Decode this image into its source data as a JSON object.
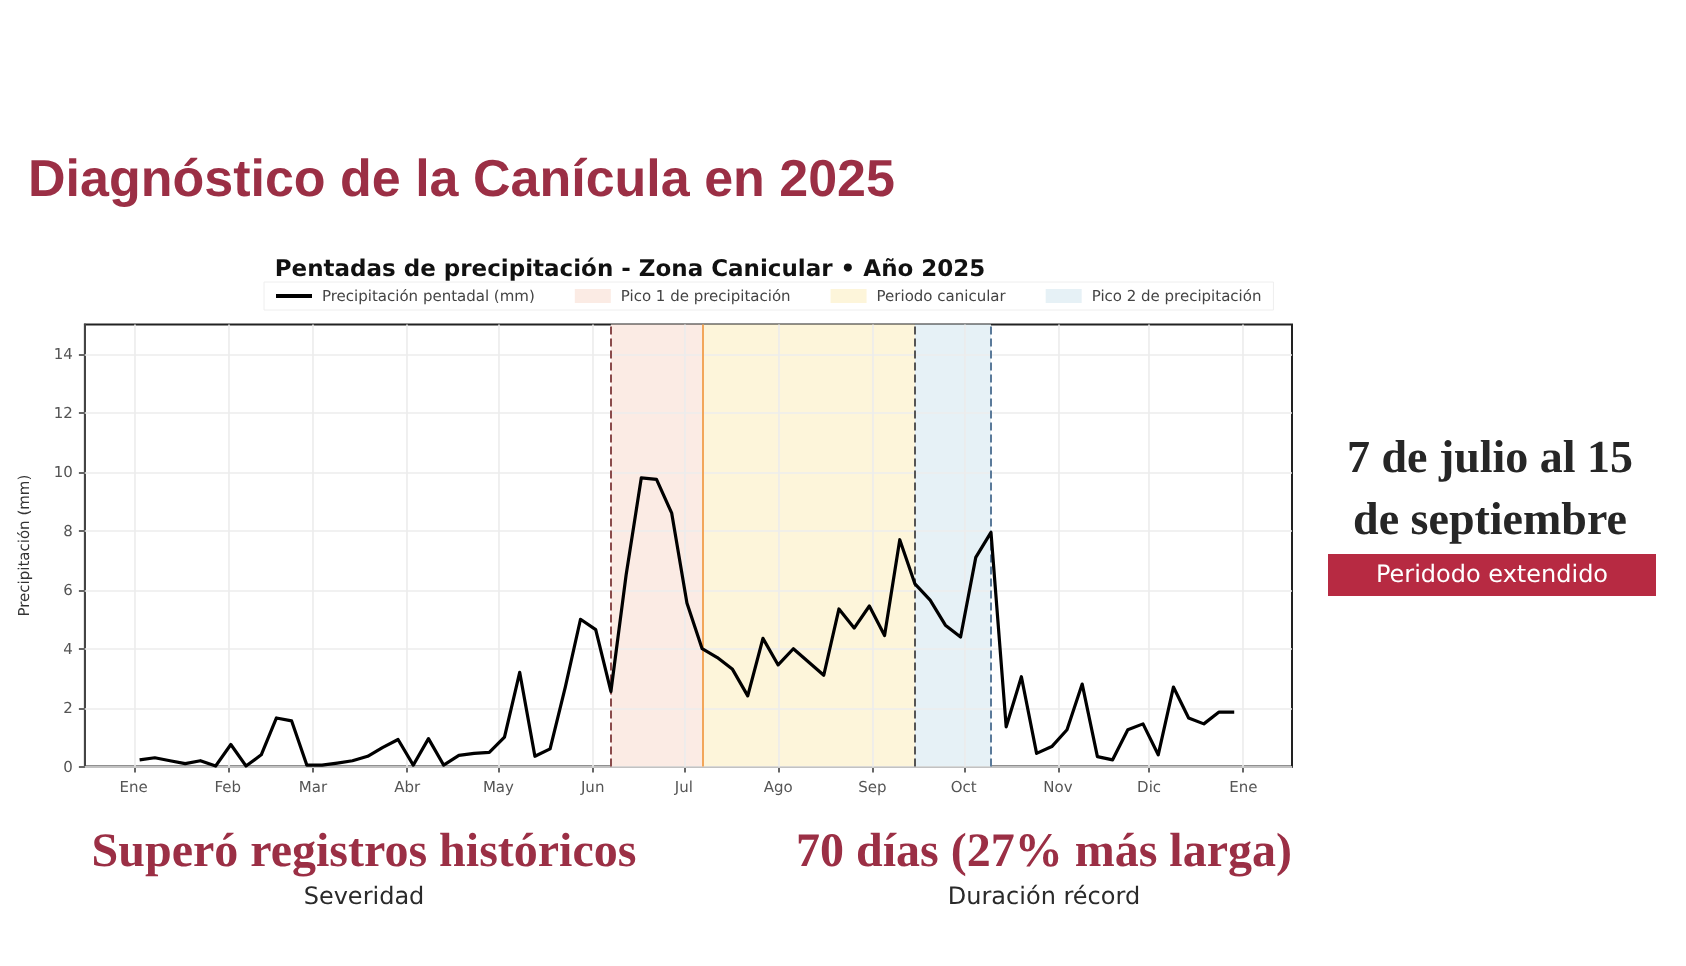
{
  "chart_data": {
    "type": "line",
    "title": "Diagnóstico de la Canícula en 2025",
    "subtitle": "Pentadas de precipitación - Zona Canicular • Año 2025",
    "ylabel": "Precipitación (mm)",
    "x": [
      "2025-01-03",
      "2025-01-08",
      "2025-01-13",
      "2025-01-18",
      "2025-01-23",
      "2025-01-28",
      "2025-02-02",
      "2025-02-07",
      "2025-02-12",
      "2025-02-17",
      "2025-02-22",
      "2025-02-27",
      "2025-03-04",
      "2025-03-09",
      "2025-03-14",
      "2025-03-19",
      "2025-03-24",
      "2025-03-29",
      "2025-04-03",
      "2025-04-08",
      "2025-04-13",
      "2025-04-18",
      "2025-04-23",
      "2025-04-28",
      "2025-05-03",
      "2025-05-08",
      "2025-05-13",
      "2025-05-18",
      "2025-05-23",
      "2025-05-28",
      "2025-06-02",
      "2025-06-07",
      "2025-06-12",
      "2025-06-17",
      "2025-06-22",
      "2025-06-27",
      "2025-07-02",
      "2025-07-07",
      "2025-07-12",
      "2025-07-17",
      "2025-07-22",
      "2025-07-27",
      "2025-08-01",
      "2025-08-06",
      "2025-08-11",
      "2025-08-16",
      "2025-08-21",
      "2025-08-26",
      "2025-08-31",
      "2025-09-05",
      "2025-09-10",
      "2025-09-15",
      "2025-09-20",
      "2025-09-25",
      "2025-09-30",
      "2025-10-05",
      "2025-10-10",
      "2025-10-15",
      "2025-10-20",
      "2025-10-25",
      "2025-10-30",
      "2025-11-04",
      "2025-11-09",
      "2025-11-14",
      "2025-11-19",
      "2025-11-24",
      "2025-11-29",
      "2025-12-04",
      "2025-12-09",
      "2025-12-14",
      "2025-12-19",
      "2025-12-24",
      "2025-12-29"
    ],
    "series": [
      {
        "name": "Precipitación pentadal (mm)",
        "color": "#000000",
        "values": [
          0.23,
          0.3,
          0.2,
          0.1,
          0.2,
          0.02,
          0.75,
          0.02,
          0.4,
          1.65,
          1.55,
          0.05,
          0.05,
          0.12,
          0.2,
          0.35,
          0.65,
          0.92,
          0.05,
          0.95,
          0.05,
          0.38,
          0.45,
          0.48,
          1.0,
          3.2,
          0.35,
          0.6,
          2.7,
          5.0,
          4.65,
          2.55,
          6.5,
          9.8,
          9.75,
          8.6,
          5.55,
          4.0,
          3.7,
          3.3,
          2.4,
          4.35,
          3.45,
          4.0,
          3.55,
          3.1,
          5.35,
          4.7,
          5.45,
          4.45,
          7.7,
          6.2,
          5.65,
          4.8,
          4.4,
          7.1,
          7.95,
          1.35,
          3.05,
          0.45,
          0.68,
          1.25,
          2.8,
          0.34,
          0.23,
          1.25,
          1.45,
          0.4,
          2.7,
          1.65,
          1.45,
          1.85,
          1.85
        ]
      }
    ],
    "xlim": [
      "2024-12-16",
      "2026-01-17"
    ],
    "xticks": [
      {
        "value": "2025-01-01",
        "label": "Ene"
      },
      {
        "value": "2025-02-01",
        "label": "Feb"
      },
      {
        "value": "2025-03-01",
        "label": "Mar"
      },
      {
        "value": "2025-04-01",
        "label": "Abr"
      },
      {
        "value": "2025-05-01",
        "label": "May"
      },
      {
        "value": "2025-06-01",
        "label": "Jun"
      },
      {
        "value": "2025-07-01",
        "label": "Jul"
      },
      {
        "value": "2025-08-01",
        "label": "Ago"
      },
      {
        "value": "2025-09-01",
        "label": "Sep"
      },
      {
        "value": "2025-10-01",
        "label": "Oct"
      },
      {
        "value": "2025-11-01",
        "label": "Nov"
      },
      {
        "value": "2025-12-01",
        "label": "Dic"
      },
      {
        "value": "2026-01-01",
        "label": "Ene"
      }
    ],
    "ylim": [
      0,
      15
    ],
    "yticks": [
      0,
      2,
      4,
      6,
      8,
      10,
      12,
      14
    ],
    "bands": [
      {
        "axis": "x",
        "from": "2025-06-07",
        "to": "2025-07-07",
        "label": "Pico 1 de precipitación",
        "color": "#fbebe4"
      },
      {
        "axis": "x",
        "from": "2025-07-07",
        "to": "2025-09-15",
        "label": "Periodo canicular",
        "color": "#fdf5da"
      },
      {
        "axis": "x",
        "from": "2025-09-15",
        "to": "2025-10-10",
        "label": "Pico 2 de precipitación",
        "color": "#e6f1f6"
      }
    ],
    "ref_lines": [
      {
        "axis": "x",
        "value": "2025-06-07",
        "color": "#8a4b4b",
        "line_style": "dashed"
      },
      {
        "axis": "x",
        "value": "2025-07-07",
        "color": "#f2a65a",
        "line_style": "solid"
      },
      {
        "axis": "x",
        "value": "2025-09-15",
        "color": "#555555",
        "line_style": "dashed"
      },
      {
        "axis": "x",
        "value": "2025-10-10",
        "color": "#5a7a9a",
        "line_style": "dashed"
      }
    ],
    "annotations": [
      "7 de julio al 15 de septiembre",
      "Peridodo extendido",
      "Superó registros históricos",
      "Severidad",
      "70 días (27% más larga)",
      "Duración récord"
    ],
    "legend": "top",
    "grid": true,
    "marker": "none",
    "line_style": "solid"
  }
}
